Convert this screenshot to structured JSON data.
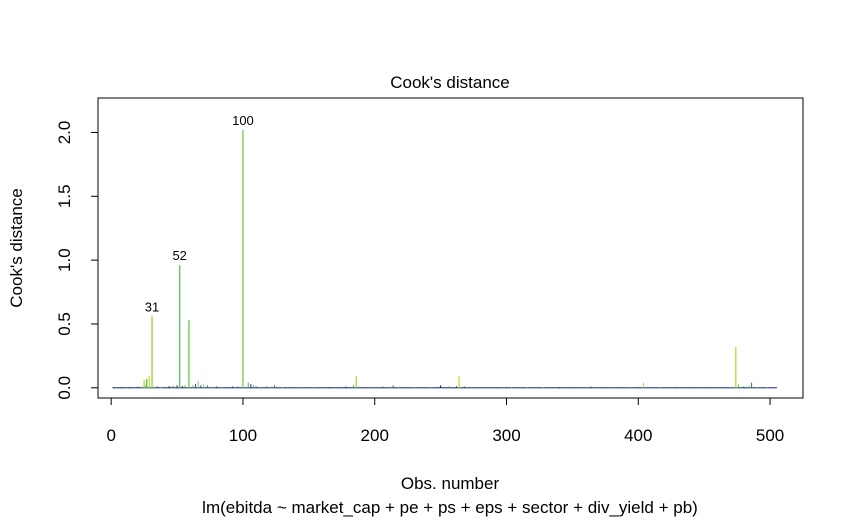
{
  "chart_data": {
    "type": "bar",
    "title": "Cook's distance",
    "xlabel": "Obs. number",
    "subtitle": "lm(ebitda ~ market_cap + pe + ps + eps + sector + div_yield + pb)",
    "ylabel": "Cook's distance",
    "xlim": [
      -10,
      525
    ],
    "ylim": [
      -0.08,
      2.27
    ],
    "x_ticks": [
      0,
      100,
      200,
      300,
      400,
      500
    ],
    "y_ticks": [
      0.0,
      0.5,
      1.0,
      1.5,
      2.0
    ],
    "y_tick_labels": [
      "0.0",
      "0.5",
      "1.0",
      "1.5",
      "2.0"
    ],
    "n_obs": 505,
    "series": [
      {
        "x": [
          2,
          5,
          8,
          11,
          14,
          17,
          20,
          23,
          25,
          26,
          27,
          29,
          31,
          33,
          35,
          38,
          41,
          44,
          47,
          50,
          52,
          54,
          56,
          59,
          62,
          64,
          66,
          68,
          70,
          73,
          76,
          80,
          84,
          88,
          92,
          96,
          100,
          104,
          106,
          108,
          110,
          114,
          118,
          122,
          124,
          130,
          136,
          142,
          148,
          154,
          160,
          166,
          172,
          178,
          184,
          186,
          188,
          194,
          200,
          206,
          212,
          214,
          218,
          224,
          230,
          236,
          242,
          248,
          250,
          256,
          262,
          264,
          268,
          274,
          280,
          286,
          292,
          298,
          300,
          304,
          310,
          316,
          322,
          328,
          334,
          340,
          346,
          352,
          358,
          364,
          370,
          376,
          382,
          388,
          394,
          400,
          404,
          410,
          416,
          422,
          428,
          434,
          440,
          446,
          452,
          458,
          464,
          470,
          474,
          476,
          480,
          484,
          486,
          490,
          494,
          498,
          502,
          505
        ],
        "y": [
          0.004,
          0.003,
          0.005,
          0.004,
          0.006,
          0.005,
          0.008,
          0.01,
          0.06,
          0.02,
          0.07,
          0.09,
          0.56,
          0.015,
          0.012,
          0.01,
          0.008,
          0.012,
          0.015,
          0.02,
          0.96,
          0.015,
          0.02,
          0.53,
          0.02,
          0.03,
          0.05,
          0.02,
          0.03,
          0.02,
          0.01,
          0.012,
          0.01,
          0.008,
          0.01,
          0.012,
          2.02,
          0.04,
          0.03,
          0.02,
          0.01,
          0.008,
          0.01,
          0.012,
          0.02,
          0.006,
          0.008,
          0.005,
          0.006,
          0.004,
          0.005,
          0.006,
          0.008,
          0.01,
          0.02,
          0.09,
          0.01,
          0.006,
          0.008,
          0.01,
          0.01,
          0.02,
          0.008,
          0.006,
          0.005,
          0.006,
          0.008,
          0.01,
          0.02,
          0.01,
          0.012,
          0.09,
          0.01,
          0.006,
          0.005,
          0.004,
          0.006,
          0.005,
          0.008,
          0.006,
          0.005,
          0.004,
          0.006,
          0.005,
          0.004,
          0.006,
          0.005,
          0.004,
          0.006,
          0.01,
          0.005,
          0.006,
          0.004,
          0.005,
          0.006,
          0.008,
          0.04,
          0.006,
          0.005,
          0.004,
          0.005,
          0.006,
          0.004,
          0.005,
          0.006,
          0.004,
          0.005,
          0.008,
          0.32,
          0.03,
          0.01,
          0.02,
          0.04,
          0.008,
          0.005,
          0.004,
          0.006,
          0.004
        ]
      }
    ],
    "labeled_points": [
      {
        "x": 31,
        "y": 0.56,
        "label": "31"
      },
      {
        "x": 52,
        "y": 0.96,
        "label": "52"
      },
      {
        "x": 100,
        "y": 2.02,
        "label": "100"
      }
    ]
  }
}
